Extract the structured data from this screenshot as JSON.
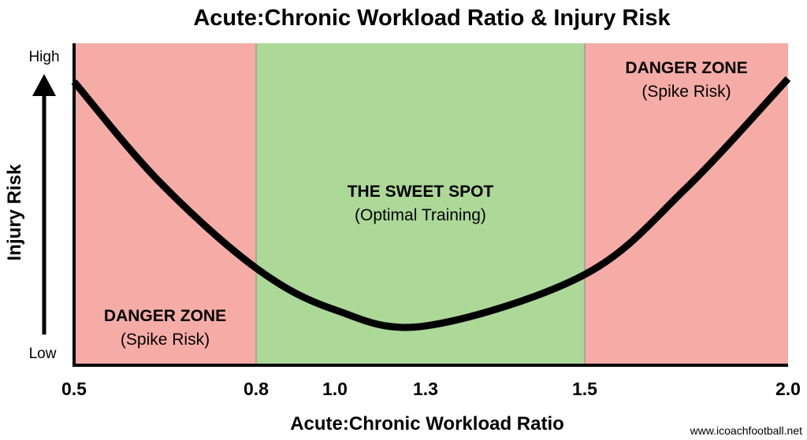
{
  "chart_data": {
    "type": "line",
    "title": "Acute:Chronic Workload Ratio & Injury Risk",
    "xlabel": "Acute:Chronic Workload Ratio",
    "ylabel": "Injury Risk",
    "y_tick_labels": {
      "high": "High",
      "low": "Low"
    },
    "x_ticks": [
      0.5,
      0.8,
      1.0,
      1.3,
      1.5,
      2.0
    ],
    "x_tick_labels": [
      "0.5",
      "0.8",
      "1.0",
      "1.3",
      "1.5",
      "2.0"
    ],
    "xlim": [
      0.5,
      2.0
    ],
    "ylim": [
      0,
      1
    ],
    "grid": false,
    "zones": [
      {
        "from": 0.5,
        "to": 0.8,
        "title": "DANGER ZONE",
        "subtitle": "(Spike Risk)",
        "color": "#f6aca6"
      },
      {
        "from": 0.8,
        "to": 1.5,
        "title": "THE SWEET SPOT",
        "subtitle": "(Optimal Training)",
        "color": "#acd898"
      },
      {
        "from": 1.5,
        "to": 2.0,
        "title": "DANGER ZONE",
        "subtitle": "(Spike Risk)",
        "color": "#f6aca6"
      }
    ],
    "series": [
      {
        "x": [
          0.5,
          0.64,
          0.8,
          1.0,
          1.3,
          1.5,
          1.75,
          2.0
        ],
        "y": [
          0.88,
          0.57,
          0.3,
          0.17,
          0.12,
          0.28,
          0.55,
          0.89
        ],
        "color": "#000000"
      }
    ]
  },
  "watermark": "www.icoachfootball.net"
}
